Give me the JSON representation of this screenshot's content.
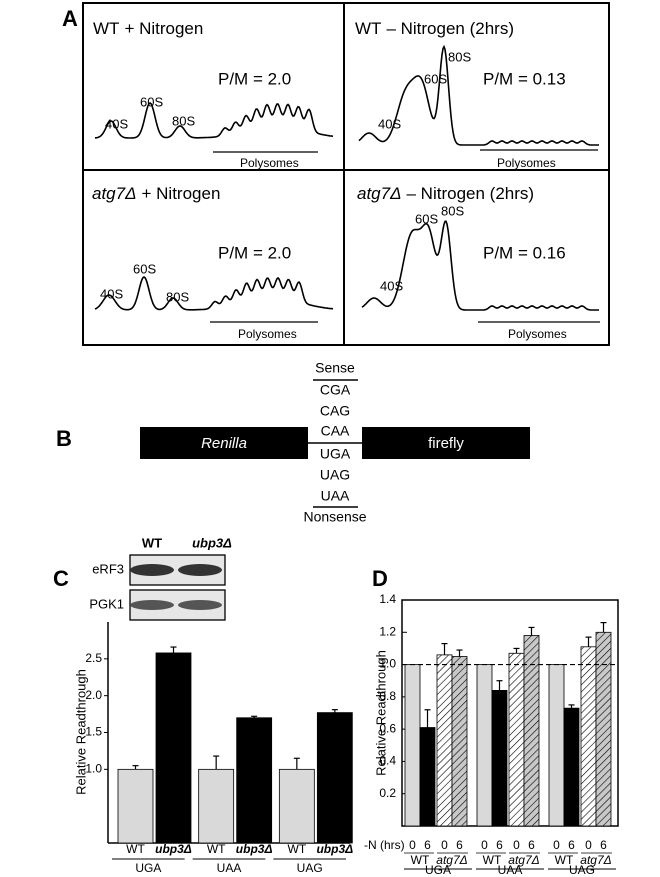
{
  "panel_a": {
    "label": "A",
    "panels": [
      {
        "strain": "WT",
        "condition": "+ Nitrogen",
        "ratio": "P/M = 2.0",
        "peaks": [
          "40S",
          "60S",
          "80S"
        ],
        "polysomes": "Polysomes"
      },
      {
        "strain": "WT",
        "condition": "– Nitrogen (2hrs)",
        "ratio": "P/M = 0.13",
        "peaks": [
          "40S",
          "60S",
          "80S"
        ],
        "polysomes": "Polysomes"
      },
      {
        "strain": "atg7Δ",
        "italic": true,
        "condition": "+ Nitrogen",
        "ratio": "P/M = 2.0",
        "peaks": [
          "40S",
          "60S",
          "80S"
        ],
        "polysomes": "Polysomes"
      },
      {
        "strain": "atg7Δ",
        "italic": true,
        "condition": "– Nitrogen (2hrs)",
        "ratio": "P/M = 0.16",
        "peaks": [
          "40S",
          "60S",
          "80S"
        ],
        "polysomes": "Polysomes"
      }
    ]
  },
  "panel_b": {
    "label": "B",
    "left": "Renilla",
    "right": "firefly",
    "sense_label": "Sense",
    "sense": [
      "CGA",
      "CAG",
      "CAA"
    ],
    "nonsense": [
      "UGA",
      "UAG",
      "UAA"
    ],
    "nonsense_label": "Nonsense"
  },
  "chart_data": [
    {
      "type": "bar",
      "panel": "C",
      "y_label": "Relative Readthrough",
      "blot": {
        "lanes": [
          "WT",
          "ubp3Δ"
        ],
        "rows": [
          "eRF3",
          "PGK1"
        ]
      },
      "categories": [
        "UGA",
        "UAA",
        "UAG"
      ],
      "series": [
        {
          "name": "WT",
          "color": "#d9d9d9",
          "values": [
            1.0,
            1.0,
            1.0
          ],
          "errors": [
            0.05,
            0.18,
            0.15
          ]
        },
        {
          "name": "ubp3Δ",
          "color": "#000000",
          "italic": true,
          "values": [
            2.58,
            1.7,
            1.77
          ],
          "errors": [
            0.08,
            0.02,
            0.04
          ]
        }
      ],
      "ylim": [
        0,
        3
      ],
      "yticks": [
        {
          "value": 1,
          "label": "1.0"
        },
        1.5,
        {
          "value": 2,
          "label": "2.0"
        },
        2.5
      ]
    },
    {
      "type": "bar",
      "panel": "D",
      "y_label": "Relative Readthrough",
      "x_label": "-N (hrs)",
      "hours": [
        0,
        6
      ],
      "strains": [
        "WT",
        "atg7Δ"
      ],
      "categories": [
        "UGA",
        "UAA",
        "UAG"
      ],
      "series": [
        {
          "color": "#d9d9d9",
          "values": [
            1.0,
            1.0,
            1.0
          ],
          "errors": [
            0,
            0,
            0
          ]
        },
        {
          "color": "#000000",
          "values": [
            0.61,
            0.84,
            0.73
          ],
          "errors": [
            0.11,
            0.06,
            0.02
          ]
        },
        {
          "color": "#ffffff",
          "hatch": true,
          "values": [
            1.06,
            1.07,
            1.11
          ],
          "errors": [
            0.07,
            0.03,
            0.06
          ]
        },
        {
          "color": "#c8c8c8",
          "hatch": true,
          "values": [
            1.05,
            1.18,
            1.2
          ],
          "errors": [
            0.04,
            0.05,
            0.06
          ]
        }
      ],
      "reference_line": 1,
      "ylim": [
        0,
        1.4
      ],
      "yticks": [
        0.2,
        0.4,
        0.6,
        0.8,
        {
          "value": 1,
          "label": "1.0"
        },
        1.2,
        1.4
      ]
    }
  ]
}
